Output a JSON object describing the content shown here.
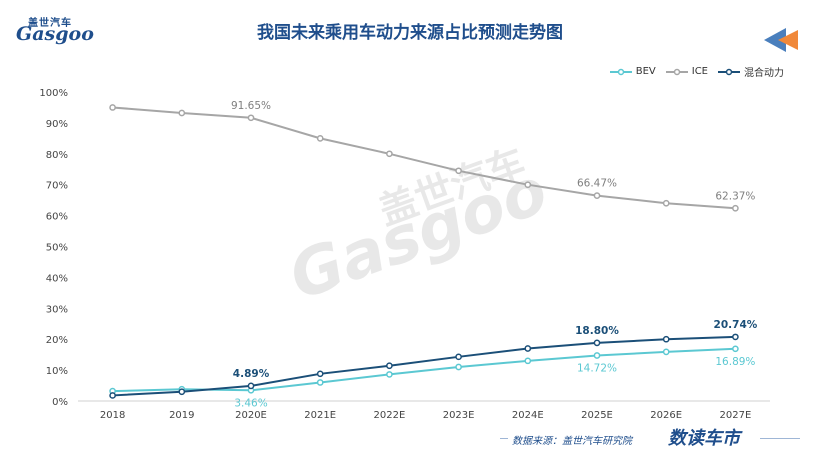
{
  "header": {
    "title": "我国未来乘用车动力来源占比预测走势图",
    "logo_cn": "盖世汽车",
    "logo_en": "Gasgoo"
  },
  "footer": {
    "source": "数据来源：盖世汽车研究院",
    "brand": "数读车市"
  },
  "watermark": {
    "cn": "盖世汽车",
    "en": "Gasgoo"
  },
  "colors": {
    "title": "#1f4e8c",
    "bev": "#5bc8d2",
    "ice": "#a6a6a6",
    "hybrid": "#1b4f78",
    "arrow_blue": "#4a7fbd",
    "arrow_orange": "#f0883a"
  },
  "chart_data": {
    "type": "line",
    "categories": [
      "2018",
      "2019",
      "2020E",
      "2021E",
      "2022E",
      "2023E",
      "2024E",
      "2025E",
      "2026E",
      "2027E"
    ],
    "ylim": [
      0,
      100
    ],
    "yticks": [
      "0%",
      "10%",
      "20%",
      "30%",
      "40%",
      "50%",
      "60%",
      "70%",
      "80%",
      "90%",
      "100%"
    ],
    "grid": false,
    "legend_position": "top-right",
    "series": [
      {
        "name": "BEV",
        "color": "#5bc8d2",
        "values": [
          3.2,
          3.8,
          3.46,
          6.0,
          8.6,
          11.0,
          13.0,
          14.72,
          15.9,
          16.89
        ]
      },
      {
        "name": "ICE",
        "color": "#a6a6a6",
        "values": [
          95.0,
          93.2,
          91.65,
          85.0,
          80.0,
          74.5,
          70.0,
          66.47,
          64.0,
          62.37
        ]
      },
      {
        "name": "混合动力",
        "color": "#1b4f78",
        "values": [
          1.8,
          3.0,
          4.89,
          8.8,
          11.4,
          14.3,
          17.0,
          18.8,
          20.0,
          20.74
        ]
      }
    ],
    "data_labels": [
      {
        "series": "ICE",
        "index": 2,
        "text": "91.65%"
      },
      {
        "series": "ICE",
        "index": 7,
        "text": "66.47%"
      },
      {
        "series": "ICE",
        "index": 9,
        "text": "62.37%"
      },
      {
        "series": "混合动力",
        "index": 2,
        "text": "4.89%"
      },
      {
        "series": "混合动力",
        "index": 7,
        "text": "18.80%"
      },
      {
        "series": "混合动力",
        "index": 9,
        "text": "20.74%"
      },
      {
        "series": "BEV",
        "index": 2,
        "text": "3.46%"
      },
      {
        "series": "BEV",
        "index": 7,
        "text": "14.72%"
      },
      {
        "series": "BEV",
        "index": 9,
        "text": "16.89%"
      }
    ]
  }
}
